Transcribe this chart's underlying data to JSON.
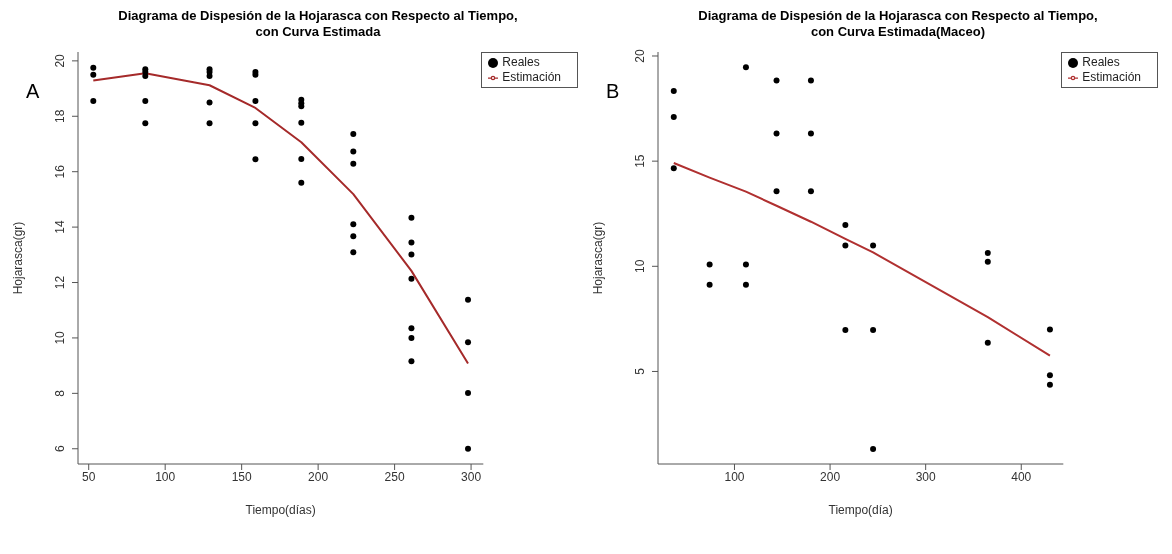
{
  "chart_data": [
    {
      "type": "scatter",
      "title": "Diagrama de Dispesión de la Hojarasca con Respecto al Tiempo,\ncon Curva Estimada",
      "xlabel": "Tiempo(días)",
      "ylabel": "Hojarasca(gr)",
      "annotations": [
        "A"
      ],
      "xlim": [
        43,
        308
      ],
      "ylim": [
        5.45,
        20.32
      ],
      "xticks": [
        50,
        100,
        150,
        200,
        250,
        300
      ],
      "yticks": [
        6,
        8,
        10,
        12,
        14,
        16,
        18,
        20
      ],
      "legend": "top right",
      "series": [
        {
          "name": "Reales",
          "marker": "circle",
          "color": "#000000",
          "x": [
            53,
            53,
            53,
            87,
            87,
            87,
            87,
            87,
            129,
            129,
            129,
            129,
            129,
            159,
            159,
            159,
            159,
            159,
            189,
            189,
            189,
            189,
            189,
            189,
            223,
            223,
            223,
            223,
            223,
            223,
            261,
            261,
            261,
            261,
            261,
            261,
            261,
            298,
            298,
            298,
            298
          ],
          "values": [
            19.75,
            19.5,
            18.55,
            19.7,
            19.6,
            19.45,
            18.55,
            17.75,
            19.7,
            19.6,
            19.45,
            18.5,
            17.75,
            19.6,
            19.5,
            18.55,
            17.75,
            16.45,
            18.6,
            18.47,
            18.36,
            17.77,
            16.46,
            15.6,
            17.36,
            16.73,
            16.29,
            14.1,
            13.67,
            13.09,
            14.34,
            13.44,
            13.01,
            12.14,
            10.35,
            10.0,
            9.16,
            11.38,
            9.84,
            8.01,
            6.0
          ]
        },
        {
          "name": "Estimación",
          "type": "line",
          "color": "#a52a2a",
          "x": [
            53,
            87,
            129,
            159,
            189,
            223,
            261,
            298
          ],
          "values": [
            19.29,
            19.55,
            19.12,
            18.3,
            17.06,
            15.19,
            12.42,
            9.08
          ]
        }
      ]
    },
    {
      "type": "scatter",
      "title": "Diagrama de Dispesión de la Hojarasca con Respecto al Tiempo,\ncon Curva Estimada(Maceo)",
      "xlabel": "Tiempo(día)",
      "ylabel": "Hojarasca(gr)",
      "annotations": [
        "B"
      ],
      "xlim": [
        20,
        444
      ],
      "ylim": [
        0.6,
        20.19
      ],
      "xticks": [
        100,
        200,
        300,
        400
      ],
      "yticks": [
        5,
        10,
        15,
        20
      ],
      "legend": "top right",
      "series": [
        {
          "name": "Reales",
          "marker": "circle",
          "color": "#000000",
          "x": [
            36.5,
            36.5,
            36.5,
            74,
            74,
            112,
            112,
            112,
            144,
            144,
            144,
            180,
            180,
            180,
            216,
            216,
            216,
            245,
            245,
            245,
            365,
            365,
            365,
            430,
            430,
            430
          ],
          "values": [
            18.33,
            17.1,
            14.66,
            10.09,
            9.12,
            19.46,
            10.09,
            9.12,
            18.84,
            16.31,
            13.57,
            18.84,
            16.31,
            13.57,
            11.96,
            10.99,
            6.97,
            10.99,
            6.97,
            1.31,
            10.63,
            10.22,
            6.37,
            7.0,
            4.82,
            4.37
          ]
        },
        {
          "name": "Estimación",
          "type": "line",
          "color": "#b03030",
          "x": [
            36.5,
            74,
            112,
            144,
            180,
            216,
            245,
            365,
            430
          ],
          "values": [
            14.91,
            14.22,
            13.55,
            12.88,
            12.12,
            11.3,
            10.66,
            7.58,
            5.75
          ]
        }
      ]
    }
  ]
}
